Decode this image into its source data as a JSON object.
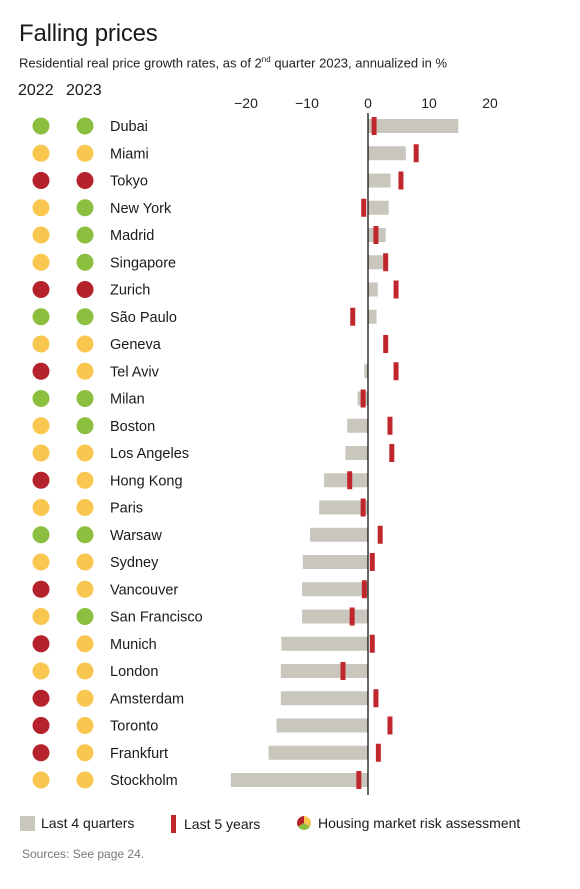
{
  "title": "Falling prices",
  "subtitle_pre": "Residential real price growth rates, as of 2",
  "subtitle_sup": "nd",
  "subtitle_post": " quarter 2023, annualized in %",
  "years": [
    "2022",
    "2023"
  ],
  "legend": {
    "last4": "Last 4 quarters",
    "last5": "Last 5 years",
    "risk": "Housing market risk assessment"
  },
  "sources": "Sources: See page 24.",
  "colors": {
    "bar": "#c8c6bd",
    "marker": "#c0272d",
    "axis": "#000000",
    "grid": "#e6e6e6",
    "green": "#8cbf3f",
    "yellow": "#f9c74f",
    "red": "#b5222b"
  },
  "chart_data": {
    "type": "bar",
    "title": "Falling prices",
    "xticks": [
      "−20",
      "−10",
      "0",
      "10",
      "20"
    ],
    "xlim": [
      -22.5,
      22.5
    ],
    "grid": false,
    "categories": [
      "Dubai",
      "Miami",
      "Tokyo",
      "New York",
      "Madrid",
      "Singapore",
      "Zurich",
      "São Paulo",
      "Geneva",
      "Tel Aviv",
      "Milan",
      "Boston",
      "Los Angeles",
      "Hong Kong",
      "Paris",
      "Warsaw",
      "Sydney",
      "Vancouver",
      "San Francisco",
      "Munich",
      "London",
      "Amsterdam",
      "Toronto",
      "Frankfurt",
      "Stockholm"
    ],
    "series": [
      {
        "name": "Last 4 quarters",
        "values": [
          14.8,
          6.2,
          3.7,
          3.4,
          2.9,
          2.6,
          1.6,
          1.4,
          0.0,
          -0.6,
          -1.7,
          -3.4,
          -3.7,
          -7.2,
          -8.0,
          -9.5,
          -10.7,
          -10.8,
          -10.8,
          -14.2,
          -14.3,
          -14.3,
          -15.0,
          -16.3,
          -22.5
        ]
      },
      {
        "name": "Last 5 years",
        "values": [
          1.0,
          7.9,
          5.4,
          -0.7,
          1.3,
          2.9,
          4.6,
          -2.5,
          2.9,
          4.6,
          -0.8,
          3.6,
          3.9,
          -3.0,
          -0.8,
          2.0,
          0.7,
          -0.6,
          -2.6,
          0.7,
          -4.1,
          1.3,
          3.6,
          1.7,
          -1.5
        ]
      }
    ],
    "risk_2022": [
      "green",
      "yellow",
      "red",
      "yellow",
      "yellow",
      "yellow",
      "red",
      "green",
      "yellow",
      "red",
      "green",
      "yellow",
      "yellow",
      "red",
      "yellow",
      "green",
      "yellow",
      "red",
      "yellow",
      "red",
      "yellow",
      "red",
      "red",
      "red",
      "yellow"
    ],
    "risk_2023": [
      "green",
      "yellow",
      "red",
      "green",
      "green",
      "green",
      "red",
      "green",
      "yellow",
      "yellow",
      "green",
      "green",
      "yellow",
      "yellow",
      "yellow",
      "green",
      "yellow",
      "yellow",
      "green",
      "yellow",
      "yellow",
      "yellow",
      "yellow",
      "yellow",
      "yellow"
    ]
  }
}
